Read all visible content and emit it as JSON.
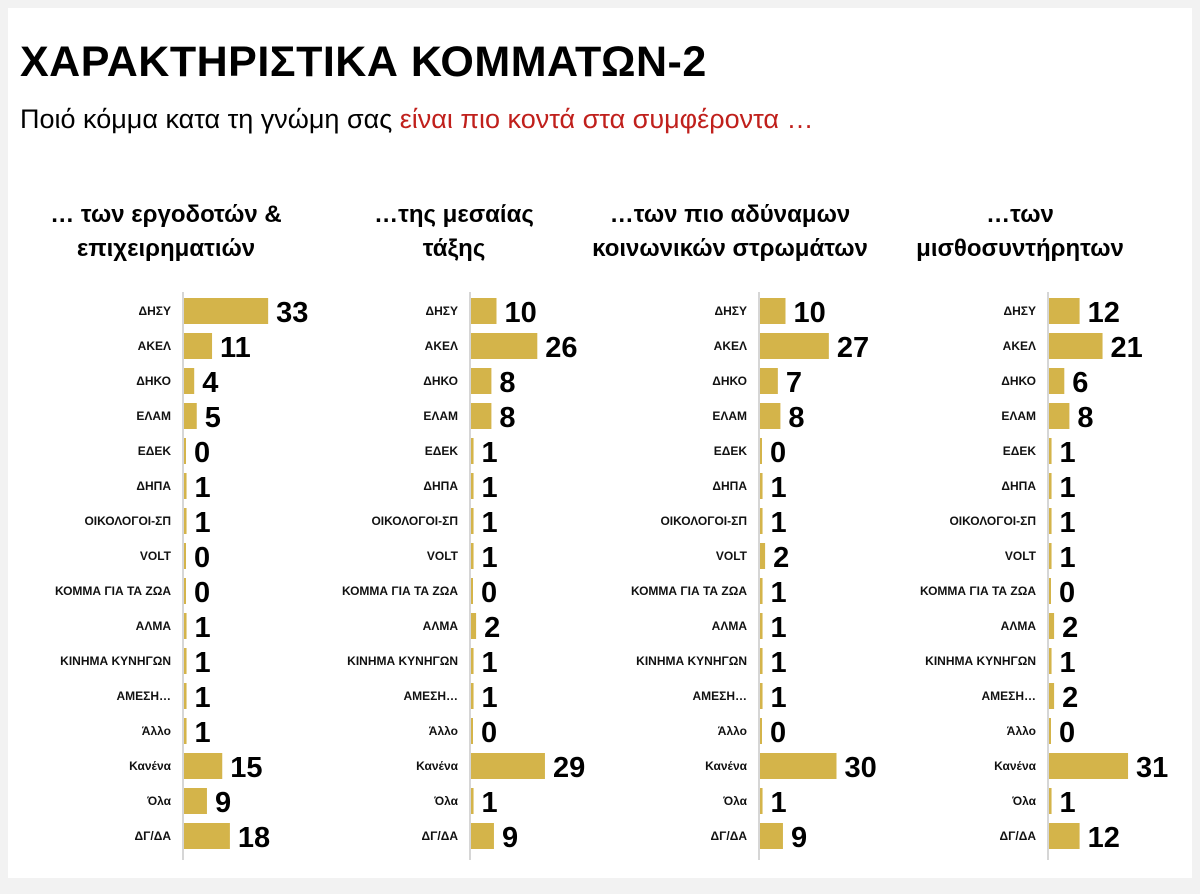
{
  "slide": {
    "title": "ΧΑΡΑΚΤΗΡΙΣΤΙΚΑ ΚΟΜΜΑΤΩΝ-2",
    "subtitle_prefix": "Ποιό κόμμα κατα τη γνώμη σας ",
    "subtitle_highlight": "είναι πιο κοντά στα συμφέροντα …",
    "highlight_color": "#c0201c"
  },
  "chart_data": [
    {
      "type": "bar",
      "orientation": "horizontal",
      "title_lines": [
        "… των εργοδοτών &",
        "επιχειρηματιών"
      ],
      "categories": [
        "ΔΗΣΥ",
        "ΑΚΕΛ",
        "ΔΗΚΟ",
        "ΕΛΑΜ",
        "ΕΔΕΚ",
        "ΔΗΠΑ",
        "ΟΙΚΟΛΟΓΟΙ-ΣΠ",
        "VOLT",
        "ΚΟΜΜΑ ΓΙΑ ΤΑ ΖΩΑ",
        "ΑΛΜΑ",
        "ΚΙΝΗΜΑ ΚΥΝΗΓΩΝ",
        "ΑΜΕΣΗ…",
        "Άλλο",
        "Κανένα",
        "Όλα",
        "ΔΓ/ΔΑ"
      ],
      "values": [
        33,
        11,
        4,
        5,
        0,
        1,
        1,
        0,
        0,
        1,
        1,
        1,
        1,
        15,
        9,
        18
      ],
      "bar_color": "#d4b44a"
    },
    {
      "type": "bar",
      "orientation": "horizontal",
      "title_lines": [
        "…της μεσαίας",
        "τάξης"
      ],
      "categories": [
        "ΔΗΣΥ",
        "ΑΚΕΛ",
        "ΔΗΚΟ",
        "ΕΛΑΜ",
        "ΕΔΕΚ",
        "ΔΗΠΑ",
        "ΟΙΚΟΛΟΓΟΙ-ΣΠ",
        "VOLT",
        "ΚΟΜΜΑ ΓΙΑ ΤΑ ΖΩΑ",
        "ΑΛΜΑ",
        "ΚΙΝΗΜΑ ΚΥΝΗΓΩΝ",
        "ΑΜΕΣΗ…",
        "Άλλο",
        "Κανένα",
        "Όλα",
        "ΔΓ/ΔΑ"
      ],
      "values": [
        10,
        26,
        8,
        8,
        1,
        1,
        1,
        1,
        0,
        2,
        1,
        1,
        0,
        29,
        1,
        9
      ],
      "bar_color": "#d4b44a"
    },
    {
      "type": "bar",
      "orientation": "horizontal",
      "title_lines": [
        "…των πιο αδύναμων",
        "κοινωνικών στρωμάτων"
      ],
      "categories": [
        "ΔΗΣΥ",
        "ΑΚΕΛ",
        "ΔΗΚΟ",
        "ΕΛΑΜ",
        "ΕΔΕΚ",
        "ΔΗΠΑ",
        "ΟΙΚΟΛΟΓΟΙ-ΣΠ",
        "VOLT",
        "ΚΟΜΜΑ ΓΙΑ ΤΑ ΖΩΑ",
        "ΑΛΜΑ",
        "ΚΙΝΗΜΑ ΚΥΝΗΓΩΝ",
        "ΑΜΕΣΗ…",
        "Άλλο",
        "Κανένα",
        "Όλα",
        "ΔΓ/ΔΑ"
      ],
      "values": [
        10,
        27,
        7,
        8,
        0,
        1,
        1,
        2,
        1,
        1,
        1,
        1,
        0,
        30,
        1,
        9
      ],
      "bar_color": "#d4b44a"
    },
    {
      "type": "bar",
      "orientation": "horizontal",
      "title_lines": [
        "…των",
        "μισθοσυντήρητων"
      ],
      "categories": [
        "ΔΗΣΥ",
        "ΑΚΕΛ",
        "ΔΗΚΟ",
        "ΕΛΑΜ",
        "ΕΔΕΚ",
        "ΔΗΠΑ",
        "ΟΙΚΟΛΟΓΟΙ-ΣΠ",
        "VOLT",
        "ΚΟΜΜΑ ΓΙΑ ΤΑ ΖΩΑ",
        "ΑΛΜΑ",
        "ΚΙΝΗΜΑ ΚΥΝΗΓΩΝ",
        "ΑΜΕΣΗ…",
        "Άλλο",
        "Κανένα",
        "Όλα",
        "ΔΓ/ΔΑ"
      ],
      "values": [
        12,
        21,
        6,
        8,
        1,
        1,
        1,
        1,
        0,
        2,
        1,
        2,
        0,
        31,
        1,
        12
      ],
      "bar_color": "#d4b44a"
    }
  ]
}
